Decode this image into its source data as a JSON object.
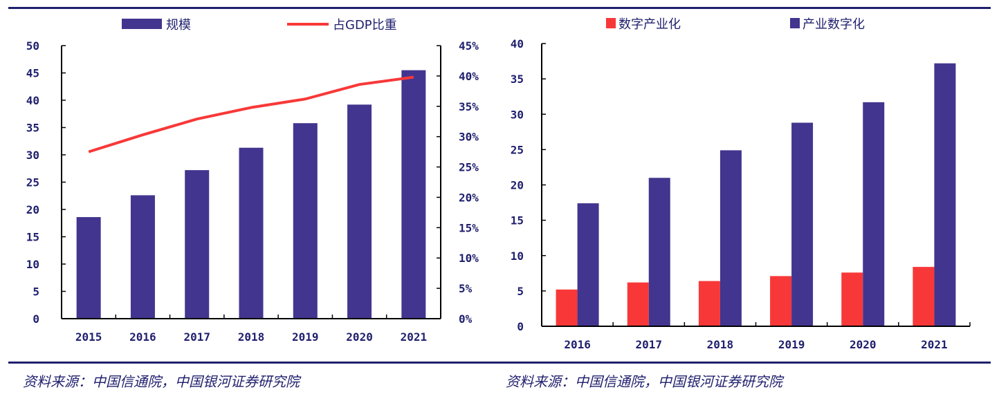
{
  "colors": {
    "navy": "#42358f",
    "red": "#f83838",
    "axis": "#000000",
    "tick_text": "#1f1f6e"
  },
  "sources": {
    "left": "资料来源：中国信通院，中国银河证券研究院",
    "right": "资料来源：中国信通院，中国银河证券研究院"
  },
  "chart_data": [
    {
      "type": "bar",
      "categories": [
        "2015",
        "2016",
        "2017",
        "2018",
        "2019",
        "2020",
        "2021"
      ],
      "series": [
        {
          "name": "规模",
          "type": "bar",
          "axis": "left",
          "color": "#42358f",
          "values": [
            18.6,
            22.6,
            27.2,
            31.3,
            35.8,
            39.2,
            45.5
          ]
        },
        {
          "name": "占GDP比重",
          "type": "line",
          "axis": "right",
          "color": "#f83838",
          "values": [
            27.5,
            30.3,
            32.9,
            34.8,
            36.2,
            38.6,
            39.8
          ]
        }
      ],
      "ylim": [
        0,
        50
      ],
      "yticks": [
        "0",
        "5",
        "10",
        "15",
        "20",
        "25",
        "30",
        "35",
        "40",
        "45",
        "50"
      ],
      "y2lim": [
        0,
        45
      ],
      "y2ticks": [
        "0%",
        "5%",
        "10%",
        "15%",
        "20%",
        "25%",
        "30%",
        "35%",
        "40%",
        "45%"
      ],
      "legend": "top-center",
      "grid": false
    },
    {
      "type": "bar",
      "categories": [
        "2016",
        "2017",
        "2018",
        "2019",
        "2020",
        "2021"
      ],
      "series": [
        {
          "name": "数字产业化",
          "color": "#f83838",
          "values": [
            5.2,
            6.2,
            6.4,
            7.1,
            7.6,
            8.4
          ]
        },
        {
          "name": "产业数字化",
          "color": "#42358f",
          "values": [
            17.4,
            21.0,
            24.9,
            28.8,
            31.7,
            37.2
          ]
        }
      ],
      "ylim": [
        0,
        40
      ],
      "yticks": [
        "0",
        "5",
        "10",
        "15",
        "20",
        "25",
        "30",
        "35",
        "40"
      ],
      "legend": "top-center",
      "grid": false
    }
  ]
}
